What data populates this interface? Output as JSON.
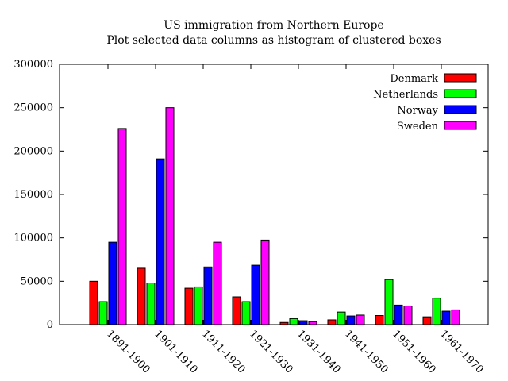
{
  "chart_data": {
    "type": "bar",
    "title": "US immigration from Northern Europe",
    "subtitle": "Plot selected data columns as histogram of clustered boxes",
    "xlabel": "",
    "ylabel": "",
    "ylim": [
      0,
      300000
    ],
    "yticks": [
      "0",
      "50000",
      "100000",
      "150000",
      "200000",
      "250000",
      "300000"
    ],
    "legend_position": "top-right",
    "grid": false,
    "categories": [
      "1891-1900",
      "1901-1910",
      "1911-1920",
      "1921-1930",
      "1931-1940",
      "1941-1950",
      "1951-1960",
      "1961-1970"
    ],
    "series": [
      {
        "name": "Denmark",
        "color": "#ff0000",
        "values": [
          50000,
          65000,
          42000,
          32000,
          2500,
          5500,
          10500,
          9000
        ]
      },
      {
        "name": "Netherlands",
        "color": "#00ff00",
        "values": [
          26500,
          48000,
          43500,
          26500,
          7000,
          14500,
          52000,
          30500
        ]
      },
      {
        "name": "Norway",
        "color": "#0000ff",
        "values": [
          95000,
          191000,
          66500,
          68500,
          4500,
          10000,
          22500,
          15500
        ]
      },
      {
        "name": "Sweden",
        "color": "#ff00ff",
        "values": [
          226000,
          250000,
          95000,
          97500,
          3500,
          11000,
          21500,
          17000
        ]
      }
    ]
  }
}
